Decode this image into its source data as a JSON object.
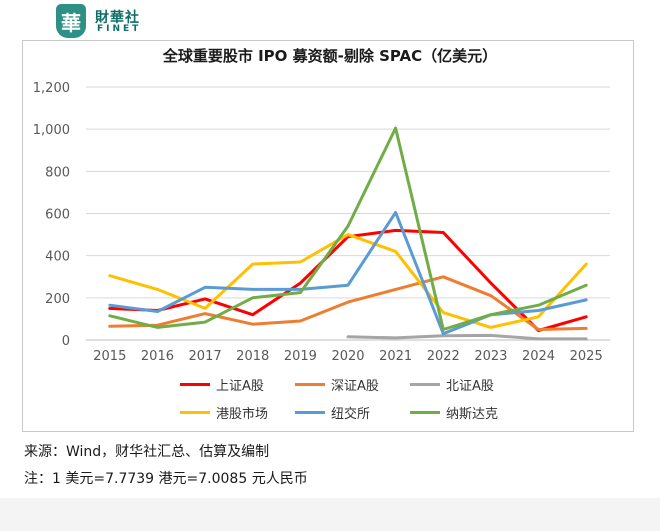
{
  "branding": {
    "seal_char": "華",
    "name_cn": "財華社",
    "name_en": "FINET"
  },
  "chart_data": {
    "type": "line",
    "title": "全球重要股市 IPO 募资额-剔除 SPAC（亿美元）",
    "xlabel": "",
    "ylabel": "",
    "ylim": [
      0,
      1200
    ],
    "yticks": [
      0,
      200,
      400,
      600,
      800,
      1000,
      1200
    ],
    "ytick_labels": [
      "0",
      "200",
      "400",
      "600",
      "800",
      "1,000",
      "1,200"
    ],
    "categories": [
      "2015",
      "2016",
      "2017",
      "2018",
      "2019",
      "2020",
      "2021",
      "2022",
      "2023",
      "2024",
      "2025"
    ],
    "grid": true,
    "legend_position": "bottom",
    "series": [
      {
        "name": "上证A股",
        "color": "#ff0000",
        "values": [
          150,
          140,
          195,
          120,
          270,
          490,
          520,
          510,
          270,
          45,
          110
        ]
      },
      {
        "name": "深证A股",
        "color": "#ed7d31",
        "values": [
          65,
          70,
          125,
          75,
          90,
          180,
          240,
          300,
          210,
          50,
          55
        ]
      },
      {
        "name": "北证A股",
        "color": "#a5a5a5",
        "values": [
          null,
          null,
          null,
          null,
          null,
          15,
          10,
          20,
          22,
          5,
          5
        ]
      },
      {
        "name": "港股市场",
        "color": "#ffc000",
        "values": [
          305,
          240,
          150,
          360,
          370,
          500,
          420,
          130,
          60,
          110,
          360
        ]
      },
      {
        "name": "纽交所",
        "color": "#5b9bd5",
        "values": [
          165,
          135,
          250,
          240,
          240,
          260,
          605,
          30,
          120,
          140,
          190
        ]
      },
      {
        "name": "纳斯达克",
        "color": "#70ad47",
        "values": [
          115,
          60,
          85,
          200,
          225,
          540,
          1005,
          50,
          120,
          165,
          260
        ]
      }
    ]
  },
  "footer": {
    "source": "来源：Wind，财华社汇总、估算及编制",
    "note": "注：1 美元=7.7739 港元=7.0085 元人民币"
  }
}
